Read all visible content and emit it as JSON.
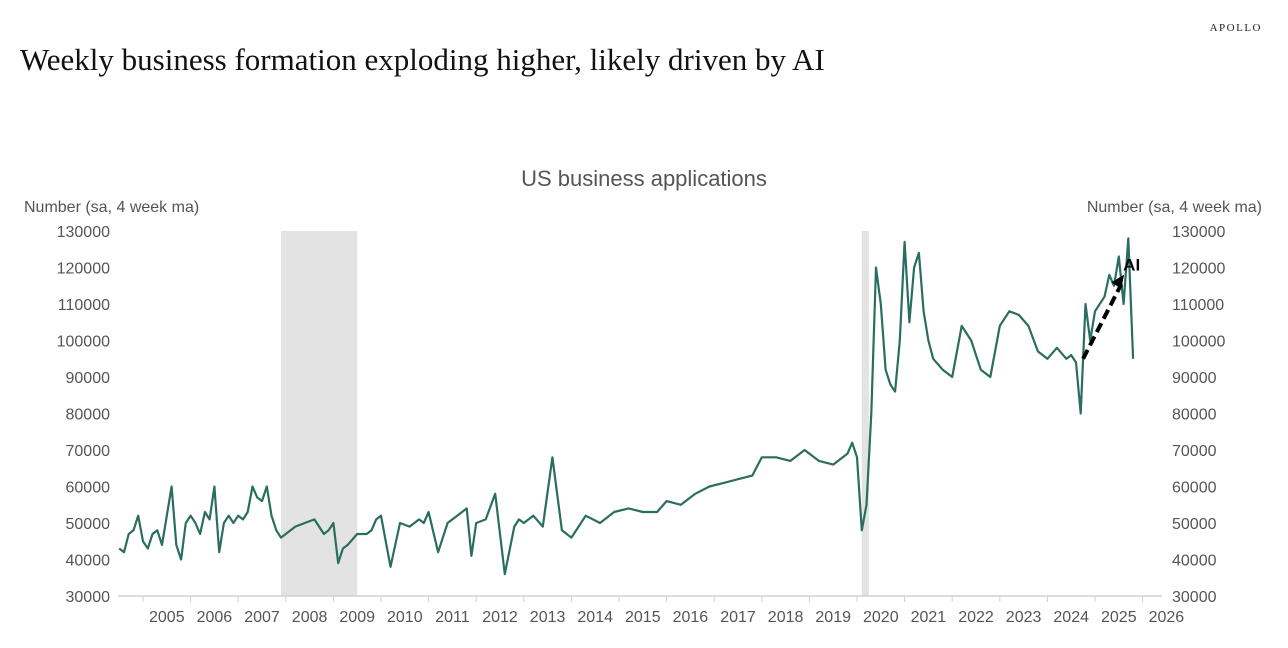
{
  "header": {
    "brand": "APOLLO",
    "headline": "Weekly business formation exploding higher, likely driven by AI"
  },
  "chart_data": {
    "type": "line",
    "title": "US business applications",
    "ylabel_left": "Number (sa, 4 week ma)",
    "ylabel_right": "Number (sa, 4 week ma)",
    "ylim": [
      30000,
      130000
    ],
    "yticks": [
      30000,
      40000,
      50000,
      60000,
      70000,
      80000,
      90000,
      100000,
      110000,
      120000,
      130000
    ],
    "xlim": [
      2004.5,
      2026.4
    ],
    "xtick_labels": [
      "2005",
      "2006",
      "2007",
      "2008",
      "2009",
      "2010",
      "2011",
      "2012",
      "2013",
      "2014",
      "2015",
      "2016",
      "2017",
      "2018",
      "2019",
      "2020",
      "2021",
      "2022",
      "2023",
      "2024",
      "2025",
      "2026"
    ],
    "shaded_periods": [
      [
        2007.9,
        2009.5
      ],
      [
        2020.1,
        2020.25
      ]
    ],
    "annotation": {
      "text": "AI",
      "arrow_from": [
        2024.75,
        95000
      ],
      "arrow_to": [
        2025.55,
        117000
      ]
    },
    "line_color": "#2a6e5e",
    "series": [
      {
        "name": "US business applications",
        "x": [
          2004.5,
          2004.6,
          2004.7,
          2004.8,
          2004.9,
          2005.0,
          2005.1,
          2005.2,
          2005.3,
          2005.4,
          2005.5,
          2005.6,
          2005.7,
          2005.8,
          2005.9,
          2006.0,
          2006.1,
          2006.2,
          2006.3,
          2006.4,
          2006.5,
          2006.6,
          2006.7,
          2006.8,
          2006.9,
          2007.0,
          2007.1,
          2007.2,
          2007.3,
          2007.4,
          2007.5,
          2007.6,
          2007.7,
          2007.8,
          2007.9,
          2008.0,
          2008.2,
          2008.4,
          2008.6,
          2008.8,
          2008.9,
          2009.0,
          2009.1,
          2009.2,
          2009.3,
          2009.5,
          2009.7,
          2009.8,
          2009.9,
          2010.0,
          2010.2,
          2010.4,
          2010.6,
          2010.8,
          2010.9,
          2011.0,
          2011.2,
          2011.4,
          2011.6,
          2011.8,
          2011.9,
          2012.0,
          2012.2,
          2012.4,
          2012.6,
          2012.8,
          2012.9,
          2013.0,
          2013.2,
          2013.4,
          2013.6,
          2013.8,
          2014.0,
          2014.3,
          2014.6,
          2014.9,
          2015.2,
          2015.5,
          2015.8,
          2016.0,
          2016.3,
          2016.6,
          2016.9,
          2017.2,
          2017.5,
          2017.8,
          2018.0,
          2018.3,
          2018.6,
          2018.9,
          2019.2,
          2019.5,
          2019.8,
          2019.9,
          2020.0,
          2020.1,
          2020.2,
          2020.3,
          2020.4,
          2020.5,
          2020.6,
          2020.7,
          2020.8,
          2020.9,
          2021.0,
          2021.1,
          2021.2,
          2021.3,
          2021.4,
          2021.5,
          2021.6,
          2021.8,
          2022.0,
          2022.2,
          2022.4,
          2022.6,
          2022.8,
          2023.0,
          2023.2,
          2023.4,
          2023.6,
          2023.8,
          2024.0,
          2024.2,
          2024.4,
          2024.5,
          2024.6,
          2024.7,
          2024.8,
          2024.9,
          2025.0,
          2025.2,
          2025.3,
          2025.4,
          2025.5,
          2025.6,
          2025.7,
          2025.8
        ],
        "values": [
          43000,
          42000,
          47000,
          48000,
          52000,
          45000,
          43000,
          47000,
          48000,
          44000,
          52000,
          60000,
          44000,
          40000,
          50000,
          52000,
          50000,
          47000,
          53000,
          51000,
          60000,
          42000,
          50000,
          52000,
          50000,
          52000,
          51000,
          53000,
          60000,
          57000,
          56000,
          60000,
          52000,
          48000,
          46000,
          47000,
          49000,
          50000,
          51000,
          47000,
          48000,
          50000,
          39000,
          43000,
          44000,
          47000,
          47000,
          48000,
          51000,
          52000,
          38000,
          50000,
          49000,
          51000,
          50000,
          53000,
          42000,
          50000,
          52000,
          54000,
          41000,
          50000,
          51000,
          58000,
          36000,
          49000,
          51000,
          50000,
          52000,
          49000,
          68000,
          48000,
          46000,
          52000,
          50000,
          53000,
          54000,
          53000,
          53000,
          56000,
          55000,
          58000,
          60000,
          61000,
          62000,
          63000,
          68000,
          68000,
          67000,
          70000,
          67000,
          66000,
          69000,
          72000,
          68000,
          48000,
          55000,
          80000,
          120000,
          110000,
          92000,
          88000,
          86000,
          100000,
          127000,
          105000,
          120000,
          124000,
          108000,
          100000,
          95000,
          92000,
          90000,
          104000,
          100000,
          92000,
          90000,
          104000,
          108000,
          107000,
          104000,
          97000,
          95000,
          98000,
          95000,
          96000,
          94000,
          80000,
          110000,
          100000,
          108000,
          112000,
          118000,
          115000,
          123000,
          110000,
          128000,
          95000
        ]
      }
    ]
  }
}
